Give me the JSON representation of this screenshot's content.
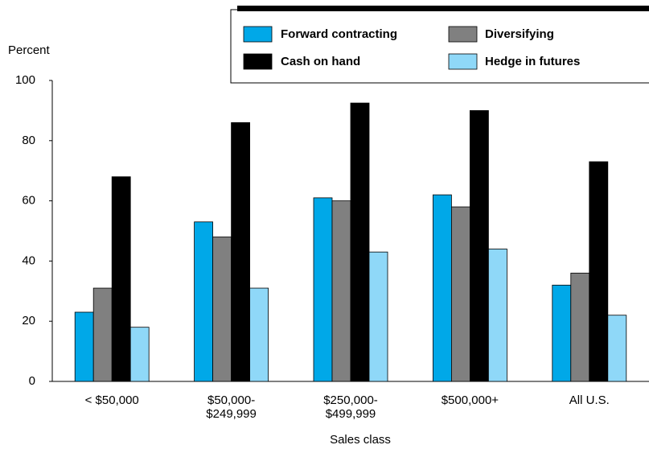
{
  "chart_data": {
    "type": "bar",
    "y_axis_label": "Percent",
    "x_axis_label": "Sales class",
    "categories": [
      "< $50,000",
      "$50,000-\n$249,999",
      "$250,000-\n$499,999",
      "$500,000+",
      "All U.S."
    ],
    "series": [
      {
        "name": "Forward contracting",
        "color": "#00a8e8",
        "values": [
          23,
          53,
          61,
          62,
          32
        ]
      },
      {
        "name": "Diversifying",
        "color": "#808080",
        "values": [
          31,
          48,
          60,
          58,
          36
        ]
      },
      {
        "name": "Cash on hand",
        "color": "#000000",
        "values": [
          68,
          86,
          92.5,
          90,
          73
        ]
      },
      {
        "name": "Hedge in futures",
        "color": "#8fd8f8",
        "values": [
          18,
          31,
          43,
          44,
          22
        ]
      }
    ],
    "ylim": [
      0,
      100
    ],
    "yticks": [
      0,
      20,
      40,
      60,
      80,
      100
    ],
    "grid": false
  }
}
